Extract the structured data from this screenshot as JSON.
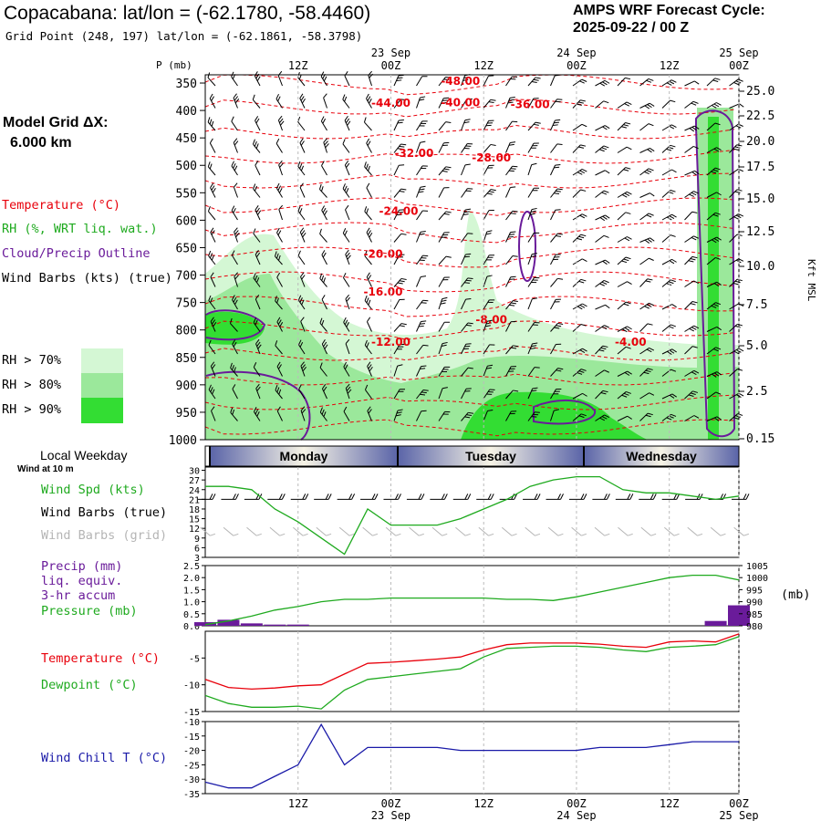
{
  "header": {
    "title": "Copacabana:  lat/lon = (-62.1780, -58.4460)",
    "subtitle": "Grid Point (248, 197) lat/lon = (-62.1861, -58.3798)",
    "cycle_label": "AMPS WRF Forecast Cycle:",
    "cycle_value": "2025-09-22 / 00  Z"
  },
  "left_panel": {
    "grid_label": "Model Grid ΔX:",
    "grid_value": "6.000 km",
    "legend": [
      {
        "text": "Temperature (°C)",
        "color": "#e8000b"
      },
      {
        "text": "RH (%, WRT liq. wat.)",
        "color": "#1faa1f"
      },
      {
        "text": "Cloud/Precip Outline",
        "color": "#6a1b9a"
      },
      {
        "text": "Wind Barbs (kts) (true)",
        "color": "#000000"
      }
    ],
    "rh_legend": [
      {
        "label": "RH > 70%",
        "color": "#d4f7d4"
      },
      {
        "label": "RH > 80%",
        "color": "#9be89b"
      },
      {
        "label": "RH > 90%",
        "color": "#33dd33"
      }
    ]
  },
  "time_axis": {
    "top_dates": [
      "23  Sep",
      "24  Sep",
      "25  Sep"
    ],
    "labels": [
      "12Z",
      "00Z",
      "12Z",
      "00Z",
      "12Z",
      "00Z"
    ],
    "bottom_dates": [
      "23  Sep",
      "24  Sep",
      "25  Sep"
    ]
  },
  "weekday": {
    "title": "Local Weekday",
    "subtitle": "Wind at 10 m",
    "days": [
      "Monday",
      "Tuesday",
      "Wednesday"
    ]
  },
  "chart_data": [
    {
      "type": "heatmap",
      "name": "cross-section",
      "y_axis_label": "P (mb)",
      "y_ticks": [
        "350",
        "400",
        "450",
        "500",
        "550",
        "600",
        "650",
        "700",
        "750",
        "800",
        "850",
        "900",
        "950",
        "1000"
      ],
      "right_axis_label": "Kft MSL",
      "right_ticks": [
        "25.0",
        "22.5",
        "20.0",
        "17.5",
        "15.0",
        "12.5",
        "10.0",
        "7.5",
        "5.0",
        "2.5",
        "0.15"
      ],
      "temperature_labels": [
        {
          "text": "-48.00",
          "t": 33,
          "p": 353
        },
        {
          "text": "-44.00",
          "t": 24,
          "p": 393
        },
        {
          "text": "-40.00",
          "t": 33,
          "p": 392
        },
        {
          "text": "-36.00",
          "t": 42,
          "p": 396
        },
        {
          "text": "-32.00",
          "t": 27,
          "p": 485
        },
        {
          "text": "-28.00",
          "t": 37,
          "p": 493
        },
        {
          "text": "-24.00",
          "t": 25,
          "p": 590
        },
        {
          "text": "-20.00",
          "t": 23,
          "p": 668
        },
        {
          "text": "-16.00",
          "t": 23,
          "p": 737
        },
        {
          "text": "-12.00",
          "t": 24,
          "p": 829
        },
        {
          "text": "-8.00",
          "t": 37,
          "p": 788
        },
        {
          "text": "-4.00",
          "t": 55,
          "p": 829
        }
      ]
    },
    {
      "type": "line",
      "name": "wind",
      "y_ticks": [
        "30",
        "27",
        "24",
        "21",
        "18",
        "15",
        "12",
        "9",
        "6",
        "3"
      ],
      "ylim": [
        3,
        30
      ],
      "legend": [
        {
          "text": "Wind Spd (kts)",
          "color": "#1faa1f"
        },
        {
          "text": "Wind Barbs (true)",
          "color": "#000000"
        },
        {
          "text": "Wind Barbs (grid)",
          "color": "#b5b5b5"
        }
      ],
      "x": [
        0,
        3,
        6,
        9,
        12,
        15,
        18,
        21,
        24,
        27,
        30,
        33,
        36,
        39,
        42,
        45,
        48,
        51,
        54,
        57,
        60,
        63,
        66,
        69
      ],
      "values": [
        25,
        25,
        24,
        18,
        14,
        9,
        4,
        18,
        13,
        13,
        13,
        15,
        18,
        21,
        25,
        27,
        28,
        28,
        24,
        23,
        23,
        22,
        21,
        22
      ]
    },
    {
      "type": "bar",
      "name": "precip-pressure",
      "y_ticks": [
        "2.5",
        "2.0",
        "1.5",
        "1.0",
        "0.5",
        "0.0"
      ],
      "right_ticks": [
        "1005",
        "1000",
        "995",
        "990",
        "985",
        "980"
      ],
      "right_unit": "(mb)",
      "legend": [
        {
          "text": "Precip (mm)",
          "color": "#6a1b9a"
        },
        {
          "text": "liq. equiv.",
          "color": "#6a1b9a"
        },
        {
          "text": "3-hr accum",
          "color": "#6a1b9a"
        },
        {
          "text": "Pressure (mb)",
          "color": "#1faa1f"
        }
      ],
      "precip_x": [
        0,
        3,
        6,
        9,
        12,
        15,
        18,
        21,
        24,
        27,
        30,
        33,
        36,
        39,
        42,
        45,
        48,
        51,
        54,
        57,
        60,
        63,
        66,
        69
      ],
      "precip": [
        0.15,
        0.25,
        0.1,
        0.05,
        0.05,
        0,
        0,
        0,
        0,
        0,
        0,
        0,
        0,
        0,
        0,
        0,
        0,
        0,
        0,
        0,
        0,
        0,
        0.2,
        0.85
      ],
      "pressure_x": [
        0,
        3,
        6,
        9,
        12,
        15,
        18,
        21,
        24,
        27,
        30,
        33,
        36,
        39,
        42,
        45,
        48,
        51,
        54,
        57,
        60,
        63,
        66,
        69
      ],
      "pressure": [
        980.5,
        982,
        984,
        986.5,
        988,
        990,
        991,
        991,
        991.5,
        991.5,
        991.5,
        991.5,
        991.5,
        991,
        991,
        990.5,
        992,
        994,
        996,
        998,
        1000,
        1001,
        1001,
        999
      ]
    },
    {
      "type": "line",
      "name": "temperature",
      "y_ticks": [
        "-5",
        "-10",
        "-15"
      ],
      "ylim": [
        -15,
        0
      ],
      "legend": [
        {
          "text": "Temperature (°C)",
          "color": "#e8000b"
        },
        {
          "text": "Dewpoint (°C)",
          "color": "#1faa1f"
        }
      ],
      "x": [
        0,
        3,
        6,
        9,
        12,
        15,
        18,
        21,
        24,
        27,
        30,
        33,
        36,
        39,
        42,
        45,
        48,
        51,
        54,
        57,
        60,
        63,
        66,
        69
      ],
      "temperature": [
        -9,
        -10.5,
        -10.8,
        -10.6,
        -10.2,
        -10,
        -8,
        -6,
        -5.8,
        -5.5,
        -5.2,
        -4.8,
        -3.5,
        -2.5,
        -2.2,
        -2.2,
        -2.2,
        -2.4,
        -2.8,
        -3,
        -2,
        -1.8,
        -2,
        -0.5
      ],
      "dewpoint": [
        -12,
        -13.5,
        -14.2,
        -14.2,
        -14.0,
        -14.5,
        -11,
        -9,
        -8.5,
        -8,
        -7.5,
        -7,
        -4.8,
        -3.2,
        -3,
        -2.8,
        -2.8,
        -3,
        -3.5,
        -3.8,
        -3,
        -2.8,
        -2.5,
        -1
      ],
      "temp_color": "#e8000b",
      "dew_color": "#1faa1f"
    },
    {
      "type": "line",
      "name": "wind-chill",
      "y_ticks": [
        "-10",
        "-15",
        "-20",
        "-25",
        "-30",
        "-35"
      ],
      "ylim": [
        -35,
        -10
      ],
      "legend": [
        {
          "text": "Wind Chill T (°C)",
          "color": "#1a1aa8"
        }
      ],
      "x": [
        0,
        3,
        6,
        9,
        12,
        15,
        18,
        21,
        24,
        27,
        30,
        33,
        36,
        39,
        42,
        45,
        48,
        51,
        54,
        57,
        60,
        63,
        66,
        69
      ],
      "values": [
        -31,
        -33,
        -33,
        -29,
        -25,
        -11,
        -25,
        -19,
        -19,
        -19,
        -19,
        -20,
        -20,
        -20,
        -20,
        -20,
        -20,
        -19,
        -19,
        -19,
        -18,
        -17,
        -17,
        -17
      ]
    }
  ]
}
